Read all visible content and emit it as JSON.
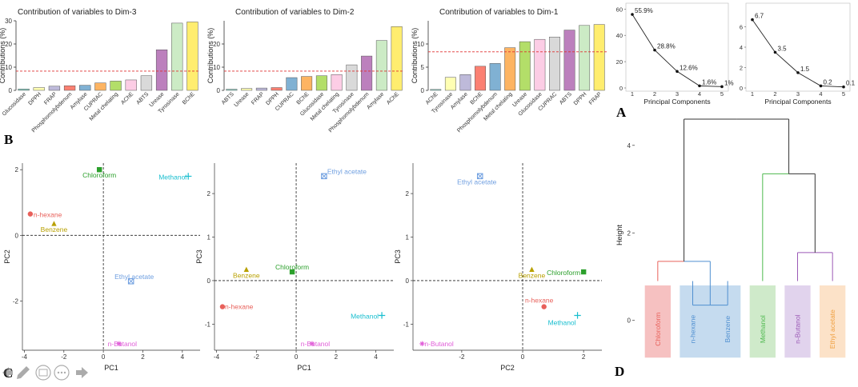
{
  "panel_labels": {
    "a": "A",
    "b": "B",
    "c": "C",
    "d": "D"
  },
  "chart_data": [
    {
      "id": "bar3",
      "type": "bar",
      "title": "Contribution of variables to Dim-3",
      "ylabel": "Contributions (%)",
      "ylim": [
        0,
        30
      ],
      "yticks": [
        0,
        10,
        20,
        30
      ],
      "ref_line": 8.3,
      "categories": [
        "Glucosidase",
        "DPPH",
        "FRAP",
        "Phosphomolybdenum",
        "Amylase",
        "CUPRAC",
        "Metal chelating",
        "AChE",
        "ABTS",
        "Urease",
        "Tyrosinase",
        "BChE"
      ],
      "values": [
        0.6,
        1.2,
        1.8,
        2.0,
        2.2,
        3.2,
        4.0,
        4.5,
        6.3,
        17.5,
        29.0,
        29.5
      ],
      "colors": [
        "#8DD3C7",
        "#FFFFB3",
        "#BEBADA",
        "#FB8072",
        "#80B1D3",
        "#FDB462",
        "#B3DE69",
        "#FCCDE5",
        "#D9D9D9",
        "#BC80BD",
        "#CCEBC5",
        "#FFED6F"
      ]
    },
    {
      "id": "bar2",
      "type": "bar",
      "title": "Contribution of variables to Dim-2",
      "ylabel": "Contributions (%)",
      "ylim": [
        0,
        30
      ],
      "yticks": [
        0,
        10,
        20
      ],
      "ref_line": 8.3,
      "categories": [
        "ABTS",
        "Urease",
        "FRAP",
        "DPPH",
        "CUPRAC",
        "BChE",
        "Glucosidase",
        "Metal chelating",
        "Tyrosinase",
        "Phosphomolybdenum",
        "Amylase",
        "AChE"
      ],
      "values": [
        0.5,
        0.8,
        1.0,
        1.2,
        5.5,
        6.0,
        6.3,
        6.8,
        11.0,
        14.8,
        21.5,
        27.5
      ],
      "colors": [
        "#8DD3C7",
        "#FFFFB3",
        "#BEBADA",
        "#FB8072",
        "#80B1D3",
        "#FDB462",
        "#B3DE69",
        "#FCCDE5",
        "#D9D9D9",
        "#BC80BD",
        "#CCEBC5",
        "#FFED6F"
      ]
    },
    {
      "id": "bar1",
      "type": "bar",
      "title": "Contribution of variables to Dim-1",
      "ylabel": "Contributions (%)",
      "ylim": [
        0,
        15
      ],
      "yticks": [
        0,
        5,
        10
      ],
      "ref_line": 8.3,
      "categories": [
        "AChE",
        "Tyrosinase",
        "Amylase",
        "BChE",
        "Phosphomolybdenum",
        "Metal chelating",
        "Urease",
        "Glucosidase",
        "CUPRAC",
        "ABTS",
        "DPPH",
        "FRAP"
      ],
      "values": [
        0.2,
        2.8,
        3.4,
        5.2,
        5.8,
        9.2,
        10.5,
        11.0,
        11.5,
        13.0,
        14.0,
        14.2
      ],
      "colors": [
        "#8DD3C7",
        "#FFFFB3",
        "#BEBADA",
        "#FB8072",
        "#80B1D3",
        "#FDB462",
        "#B3DE69",
        "#FCCDE5",
        "#D9D9D9",
        "#BC80BD",
        "#CCEBC5",
        "#FFED6F"
      ]
    },
    {
      "id": "scree1",
      "type": "line",
      "xlabel": "Principal Components",
      "x": [
        1,
        2,
        3,
        4,
        5
      ],
      "y": [
        55.9,
        28.8,
        12.6,
        1.6,
        1.0
      ],
      "labels": [
        "55.9%",
        "28.8%",
        "12.6%",
        "1.6%",
        "1%"
      ],
      "ylim": [
        0,
        62
      ],
      "yticks": [
        0,
        20,
        40,
        60
      ],
      "xticks": [
        1,
        2,
        3,
        4,
        5
      ]
    },
    {
      "id": "scree2",
      "type": "line",
      "xlabel": "Principal Components",
      "x": [
        1,
        2,
        3,
        4,
        5
      ],
      "y": [
        6.7,
        3.5,
        1.5,
        0.2,
        0.1
      ],
      "labels": [
        "6.7",
        "3.5",
        "1.5",
        "0.2",
        "0.1"
      ],
      "ylim": [
        0,
        8
      ],
      "yticks": [
        0,
        2,
        4,
        6
      ],
      "xticks": [
        1,
        2,
        3,
        4,
        5
      ]
    },
    {
      "id": "sc1",
      "type": "scatter",
      "xlabel": "PC1",
      "ylabel": "PC2",
      "xlim": [
        -4.1,
        4.9
      ],
      "ylim": [
        -3.5,
        2.2
      ],
      "xticks": [
        -4,
        -2,
        0,
        2,
        4
      ],
      "yticks": [
        -2,
        0,
        2
      ],
      "points": [
        {
          "label": "Chloroform",
          "x": -0.2,
          "y": 2.0,
          "color": "#2CA02C",
          "shape": "square"
        },
        {
          "label": "Methanol",
          "x": 4.3,
          "y": 1.8,
          "color": "#17BECF",
          "shape": "plus"
        },
        {
          "label": "n-hexane",
          "x": -3.7,
          "y": 0.65,
          "color": "#E8605A",
          "shape": "circle"
        },
        {
          "label": "Benzene",
          "x": -2.5,
          "y": 0.35,
          "color": "#B8A000",
          "shape": "triangle"
        },
        {
          "label": "Ethyl acetate",
          "x": 1.4,
          "y": -1.4,
          "color": "#6F9FE0",
          "shape": "boxx"
        },
        {
          "label": "n-Butanol",
          "x": 0.8,
          "y": -3.3,
          "color": "#E05CD8",
          "shape": "star"
        }
      ]
    },
    {
      "id": "sc2",
      "type": "scatter",
      "xlabel": "PC1",
      "ylabel": "PC3",
      "xlim": [
        -4.1,
        4.9
      ],
      "ylim": [
        -1.6,
        2.7
      ],
      "xticks": [
        -4,
        -2,
        0,
        2,
        4
      ],
      "yticks": [
        -1,
        0,
        1,
        2
      ],
      "points": [
        {
          "label": "Ethyl acetate",
          "x": 1.4,
          "y": 2.4,
          "color": "#6F9FE0",
          "shape": "boxx"
        },
        {
          "label": "Benzene",
          "x": -2.5,
          "y": 0.25,
          "color": "#B8A000",
          "shape": "triangle"
        },
        {
          "label": "Chloroform",
          "x": -0.2,
          "y": 0.2,
          "color": "#2CA02C",
          "shape": "square"
        },
        {
          "label": "n-hexane",
          "x": -3.7,
          "y": -0.6,
          "color": "#E8605A",
          "shape": "circle"
        },
        {
          "label": "Methanol",
          "x": 4.3,
          "y": -0.8,
          "color": "#17BECF",
          "shape": "plus"
        },
        {
          "label": "n-Butanol",
          "x": 0.8,
          "y": -1.45,
          "color": "#E05CD8",
          "shape": "star"
        }
      ]
    },
    {
      "id": "sc3",
      "type": "scatter",
      "xlabel": "PC2",
      "ylabel": "PC3",
      "xlim": [
        -3.6,
        2.6
      ],
      "ylim": [
        -1.6,
        2.7
      ],
      "xticks": [
        -2,
        0,
        2
      ],
      "yticks": [
        -1,
        0,
        1,
        2
      ],
      "points": [
        {
          "label": "Ethyl acetate",
          "x": -1.4,
          "y": 2.4,
          "color": "#6F9FE0",
          "shape": "boxx"
        },
        {
          "label": "Benzene",
          "x": 0.3,
          "y": 0.25,
          "color": "#B8A000",
          "shape": "triangle"
        },
        {
          "label": "Chloroform",
          "x": 2.0,
          "y": 0.2,
          "color": "#2CA02C",
          "shape": "square"
        },
        {
          "label": "n-hexane",
          "x": 0.7,
          "y": -0.6,
          "color": "#E8605A",
          "shape": "circle"
        },
        {
          "label": "Methanol",
          "x": 1.8,
          "y": -0.8,
          "color": "#17BECF",
          "shape": "plus"
        },
        {
          "label": "n-Butanol",
          "x": -3.3,
          "y": -1.45,
          "color": "#E05CD8",
          "shape": "star"
        }
      ]
    },
    {
      "id": "dendro",
      "type": "dendrogram",
      "ylabel": "Height",
      "ylim": [
        -0.9,
        4.8
      ],
      "yticks": [
        0,
        2,
        4
      ],
      "leaves": [
        "Chloroform",
        "n-hexane",
        "Benzene",
        "Methanol",
        "n-Butanol",
        "Ethyl acetate"
      ],
      "leaf_colors": [
        "#E8605A",
        "#4F8FD0",
        "#4F8FD0",
        "#4DB84D",
        "#9B59B6",
        "#F0A040"
      ],
      "cluster_boxes": [
        {
          "leaves": [
            0
          ],
          "color": "#F4B6B6"
        },
        {
          "leaves": [
            1,
            2
          ],
          "color": "#BBD5EC"
        },
        {
          "leaves": [
            3
          ],
          "color": "#C7E6C1"
        },
        {
          "leaves": [
            4
          ],
          "color": "#DCCBEA"
        },
        {
          "leaves": [
            5
          ],
          "color": "#FCDDBE"
        }
      ],
      "merges": [
        {
          "a": 1,
          "b": 2,
          "h": 0.35,
          "color": "#4F8FD0"
        },
        {
          "a": 4,
          "b": 5,
          "h": 1.55,
          "color": "#9B59B6"
        },
        {
          "a": 0,
          "b": "m0",
          "h": 1.35,
          "color": "#E8605A",
          "color_b": "#4F8FD0"
        },
        {
          "a": 3,
          "b": "m1",
          "h": 3.35,
          "color": "#4DB84D",
          "color_b": "#333333"
        },
        {
          "a": "m2",
          "b": "m3",
          "h": 4.6,
          "color": "#333333"
        }
      ]
    }
  ],
  "toolbar": [
    {
      "name": "back-arrow-icon"
    },
    {
      "name": "pencil-icon"
    },
    {
      "name": "slide-icon"
    },
    {
      "name": "more-icon"
    },
    {
      "name": "forward-arrow-icon"
    }
  ]
}
